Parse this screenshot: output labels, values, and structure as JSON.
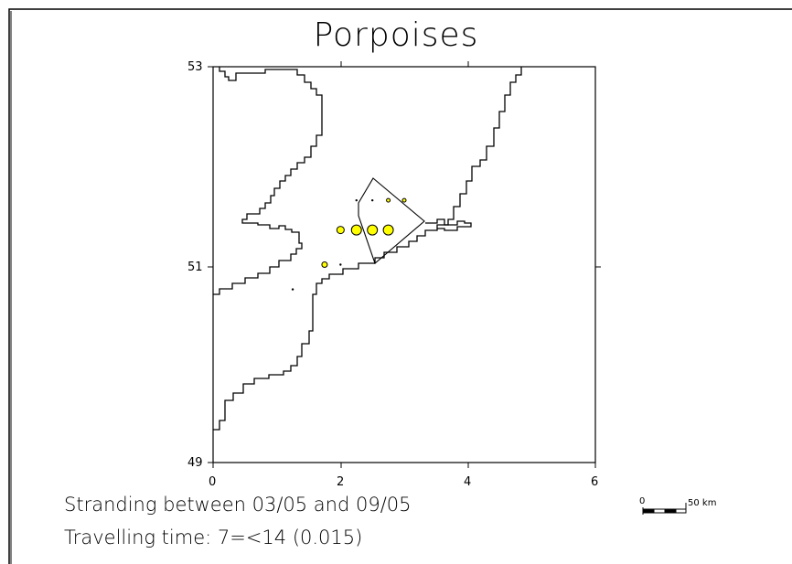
{
  "title": "Porpoises",
  "map": {
    "x_ticks": [
      "0",
      "2",
      "4",
      "6"
    ],
    "y_ticks": [
      "53",
      "51",
      "49"
    ],
    "marker_color": "#ffff00",
    "stranding_points": [
      {
        "x": 2.0,
        "y": 51.35,
        "size": "medium"
      },
      {
        "x": 2.25,
        "y": 51.35,
        "size": "large"
      },
      {
        "x": 2.5,
        "y": 51.35,
        "size": "large"
      },
      {
        "x": 2.75,
        "y": 51.35,
        "size": "large"
      },
      {
        "x": 1.75,
        "y": 51.0,
        "size": "small"
      },
      {
        "x": 2.75,
        "y": 51.65,
        "size": "tiny"
      },
      {
        "x": 3.0,
        "y": 51.65,
        "size": "tiny"
      },
      {
        "x": 2.5,
        "y": 51.65,
        "size": "dot"
      },
      {
        "x": 2.25,
        "y": 51.65,
        "size": "dot"
      },
      {
        "x": 2.0,
        "y": 51.0,
        "size": "dot"
      },
      {
        "x": 1.25,
        "y": 50.75,
        "size": "dot"
      }
    ],
    "scale_bar": {
      "start_label": "0",
      "end_label": "50 km"
    }
  },
  "captions": {
    "line1": "Stranding between 03/05 and 09/05",
    "line2": "Travelling time: 7=<14 (0.015)"
  }
}
